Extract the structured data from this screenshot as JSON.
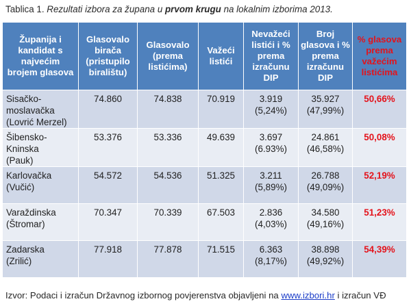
{
  "caption": {
    "prefix": "Tablica 1. ",
    "italic_a": "Rezultati izbora za župana  u ",
    "bold": "prvom krugu",
    "italic_b": " na lokalnim izborima 2013."
  },
  "table": {
    "headers": [
      "Županija i kandidat s najvećim brojem glasova",
      "Glasovalo birača (pristupilo biralištu)",
      "Glasovalo (prema listićima)",
      "Važeći listići",
      "Nevažeći listići i % prema izračunu DIP",
      "Broj glasova i % prema izračunu DIP",
      "% glasova prema važećim listićima"
    ],
    "rows": [
      {
        "zupanija": "Sisačko-moslavačka",
        "kandidat": "(Lovrić Merzel)",
        "birači": "74.860",
        "listici": "74.838",
        "vazeci": "70.919",
        "nevazeci": "3.919",
        "nevazeci_pct": "(5,24%)",
        "glasovi": "35.927",
        "glasovi_pct": "(47,99%)",
        "postotak": "50,66%"
      },
      {
        "zupanija": "Šibensko-Kninska",
        "kandidat": "(Pauk)",
        "birači": "53.376",
        "listici": "53.336",
        "vazeci": "49.639",
        "nevazeci": "3.697",
        "nevazeci_pct": "(6.93%)",
        "glasovi": "24.861",
        "glasovi_pct": "(46,58%)",
        "postotak": "50,08%"
      },
      {
        "zupanija": "Karlovačka",
        "kandidat": "(Vučić)",
        "birači": "54.572",
        "listici": "54.536",
        "vazeci": "51.325",
        "nevazeci": "3.211",
        "nevazeci_pct": "(5,89%)",
        "glasovi": "26.788",
        "glasovi_pct": "(49,09%)",
        "postotak": "52,19%"
      },
      {
        "zupanija": "Varaždinska",
        "kandidat": "(Štromar)",
        "birači": "70.347",
        "listici": "70.339",
        "vazeci": "67.503",
        "nevazeci": "2.836",
        "nevazeci_pct": "(4,03%)",
        "glasovi": "34.580",
        "glasovi_pct": "(49,16%)",
        "postotak": "51,23%"
      },
      {
        "zupanija": "Zadarska",
        "kandidat": "(Zrilić)",
        "birači": "77.918",
        "listici": "77.878",
        "vazeci": "71.515",
        "nevazeci": "6.363",
        "nevazeci_pct": "(8,17%)",
        "glasovi": "38.898",
        "glasovi_pct": "(49,92%)",
        "postotak": "54,39%"
      }
    ]
  },
  "source": {
    "prefix": "Izvor: Podaci i izračun Državnog izbornog povjerenstva objavljeni na ",
    "link": "www.izbori.hr",
    "suffix": " i izračun VĐ"
  },
  "colors": {
    "header_bg": "#4f81bd",
    "row_odd": "#d0d8e8",
    "row_even": "#e9edf4",
    "accent_red": "#e4131b",
    "link_blue": "#1a3cc8"
  }
}
